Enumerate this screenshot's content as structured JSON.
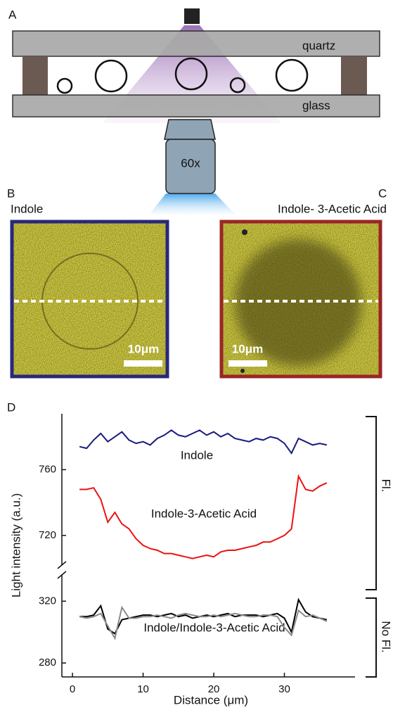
{
  "panels": {
    "A": {
      "label": "A",
      "top_plate": "quartz",
      "bottom_plate": "glass",
      "objective": "60x"
    },
    "B": {
      "label": "B",
      "title": "Indole",
      "scale_bar": "10μm"
    },
    "C": {
      "label": "C",
      "title": "Indole- 3-Acetic Acid",
      "scale_bar": "10μm"
    },
    "D": {
      "label": "D"
    }
  },
  "chart_data": {
    "type": "line",
    "xlabel": "Distance (μm)",
    "ylabel": "Light intensity (a.u.)",
    "group_labels": {
      "upper": "Fl.",
      "lower": "No Fl."
    },
    "x": [
      1,
      2,
      3,
      4,
      5,
      6,
      7,
      8,
      9,
      10,
      11,
      12,
      13,
      14,
      15,
      16,
      17,
      18,
      19,
      20,
      21,
      22,
      23,
      24,
      25,
      26,
      27,
      28,
      29,
      30,
      31,
      32,
      33,
      34,
      35,
      36
    ],
    "xlim": [
      -1.5,
      40
    ],
    "xticks": [
      0,
      10,
      20,
      30
    ],
    "ylim": [
      702,
      794
    ],
    "yticks": [
      720,
      760
    ],
    "y2lim": [
      271,
      337
    ],
    "y2ticks": [
      280,
      320
    ],
    "series": [
      {
        "name": "Indole",
        "color": "#1a1a80",
        "values": [
          774,
          773,
          778,
          782,
          777,
          780,
          783,
          778,
          776,
          777,
          775,
          779,
          781,
          784,
          781,
          780,
          782,
          784,
          781,
          783,
          780,
          782,
          779,
          778,
          777,
          779,
          778,
          780,
          779,
          776,
          770,
          779,
          777,
          775,
          776,
          775
        ]
      },
      {
        "name": "Indole-3-Acetic Acid",
        "color": "#ee1111",
        "values": [
          748,
          748,
          749,
          742,
          728,
          734,
          727,
          724,
          718,
          714,
          712,
          711,
          709,
          709,
          708,
          707,
          706,
          707,
          708,
          707,
          710,
          711,
          711,
          712,
          713,
          714,
          716,
          716,
          718,
          720,
          724,
          756,
          748,
          747,
          750,
          752
        ]
      },
      {
        "name": "Indole/Indole-3-Acetic Acid",
        "color": "#000000",
        "axis": "y2",
        "values": [
          310,
          310,
          311,
          317,
          302,
          299,
          308,
          309,
          310,
          311,
          311,
          310,
          311,
          312,
          310,
          311,
          309,
          310,
          311,
          310,
          311,
          312,
          310,
          311,
          311,
          311,
          310,
          311,
          312,
          309,
          300,
          321,
          313,
          310,
          309,
          308
        ]
      },
      {
        "color": "#8a8a8a",
        "axis": "y2",
        "values": [
          310,
          309,
          310,
          312,
          304,
          296,
          316,
          309,
          309,
          310,
          310,
          311,
          310,
          309,
          311,
          312,
          311,
          310,
          310,
          311,
          310,
          311,
          312,
          311,
          310,
          310,
          311,
          311,
          310,
          303,
          298,
          314,
          310,
          311,
          309,
          307
        ]
      }
    ]
  }
}
